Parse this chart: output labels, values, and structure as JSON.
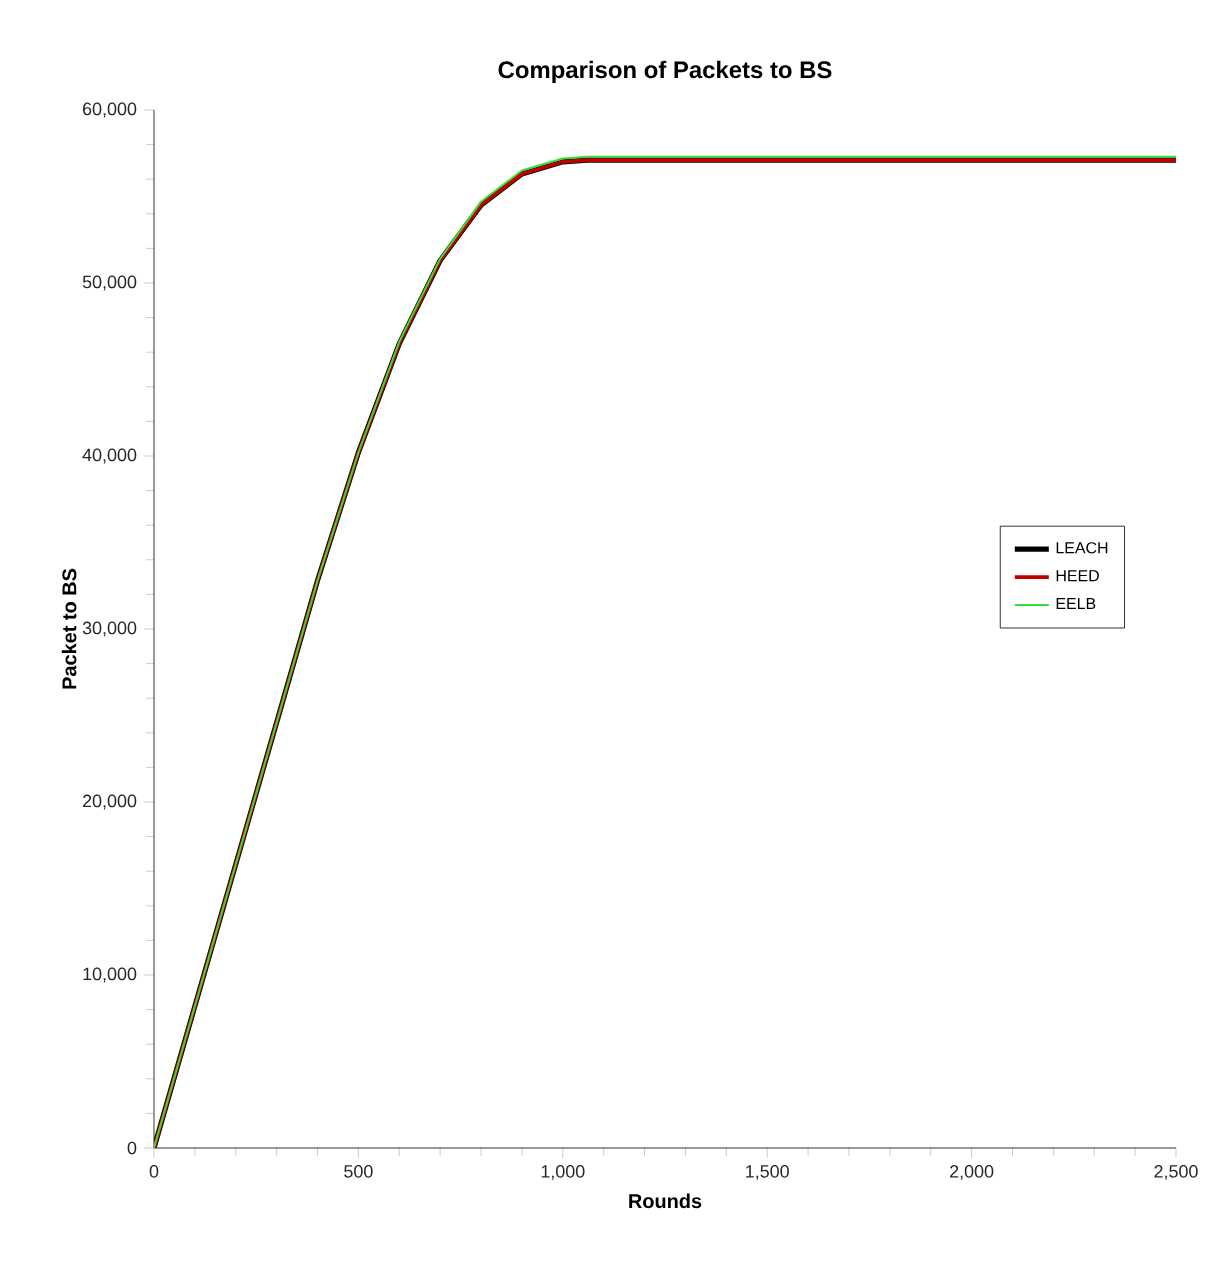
{
  "chart_data": {
    "type": "line",
    "title": "Comparison of Packets to BS",
    "xlabel": "Rounds",
    "ylabel": "Packet to BS",
    "x": [
      0,
      100,
      200,
      300,
      400,
      500,
      600,
      700,
      800,
      900,
      1000,
      1060,
      1500,
      2000,
      2500
    ],
    "series": [
      {
        "name": "LEACH",
        "color": "#000000",
        "values": [
          0,
          8200,
          16400,
          24600,
          32800,
          40200,
          46500,
          51300,
          54500,
          56300,
          57000,
          57100,
          57100,
          57100,
          57100
        ]
      },
      {
        "name": "HEED",
        "color": "#c00000",
        "values": [
          0,
          8200,
          16400,
          24600,
          32800,
          40200,
          46500,
          51300,
          54500,
          56300,
          57000,
          57100,
          57100,
          57100,
          57100
        ]
      },
      {
        "name": "EELB",
        "color": "#33dd33",
        "values": [
          0,
          8200,
          16400,
          24600,
          32800,
          40200,
          46600,
          51400,
          54700,
          56500,
          57200,
          57300,
          57300,
          57300,
          57300
        ]
      }
    ],
    "xlim": [
      0,
      2500
    ],
    "xticks": [
      {
        "value": 0,
        "label": "0"
      },
      {
        "value": 500,
        "label": "500"
      },
      {
        "value": 1000,
        "label": "1,000"
      },
      {
        "value": 1500,
        "label": "1,500"
      },
      {
        "value": 2000,
        "label": "2,000"
      },
      {
        "value": 2500,
        "label": "2,500"
      }
    ],
    "ylim": [
      0,
      60000
    ],
    "yticks": [
      {
        "value": 0,
        "label": "0"
      },
      {
        "value": 10000,
        "label": "10,000"
      },
      {
        "value": 20000,
        "label": "20,000"
      },
      {
        "value": 30000,
        "label": "30,000"
      },
      {
        "value": 40000,
        "label": "40,000"
      },
      {
        "value": 50000,
        "label": "50,000"
      },
      {
        "value": 60000,
        "label": "60,000"
      }
    ],
    "grid": false,
    "legend": "right",
    "marker": "none",
    "line_style": "solid"
  }
}
